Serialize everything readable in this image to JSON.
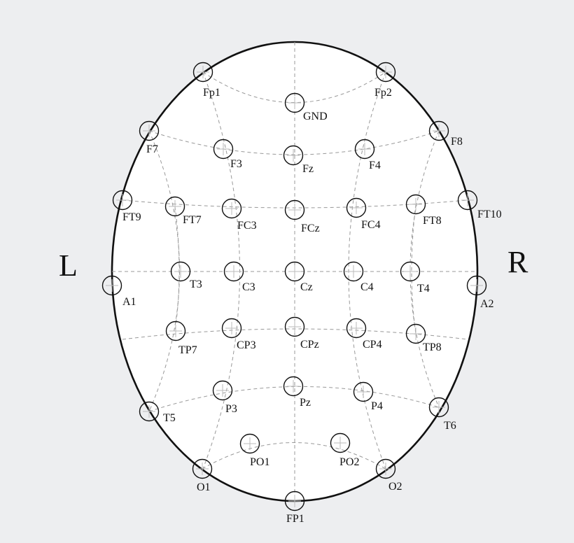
{
  "sides": {
    "left": "L",
    "right": "R"
  },
  "colors": {
    "background": "#edeef0",
    "head_fill": "#ffffff",
    "outline": "#111111",
    "grid": "#999999"
  },
  "electrodes": [
    {
      "id": "fp1",
      "label": "Fp1"
    },
    {
      "id": "fp2",
      "label": "Fp2"
    },
    {
      "id": "gnd",
      "label": "GND"
    },
    {
      "id": "f7",
      "label": "F7"
    },
    {
      "id": "f3",
      "label": "F3"
    },
    {
      "id": "fz",
      "label": "Fz"
    },
    {
      "id": "f4",
      "label": "F4"
    },
    {
      "id": "f8",
      "label": "F8"
    },
    {
      "id": "ft9",
      "label": "FT9"
    },
    {
      "id": "ft7",
      "label": "FT7"
    },
    {
      "id": "fc3",
      "label": "FC3"
    },
    {
      "id": "fcz",
      "label": "FCz"
    },
    {
      "id": "fc4",
      "label": "FC4"
    },
    {
      "id": "ft8",
      "label": "FT8"
    },
    {
      "id": "ft10",
      "label": "FT10"
    },
    {
      "id": "a1",
      "label": "A1"
    },
    {
      "id": "t3",
      "label": "T3"
    },
    {
      "id": "c3",
      "label": "C3"
    },
    {
      "id": "cz",
      "label": "Cz"
    },
    {
      "id": "c4",
      "label": "C4"
    },
    {
      "id": "t4",
      "label": "T4"
    },
    {
      "id": "a2",
      "label": "A2"
    },
    {
      "id": "tp7",
      "label": "TP7"
    },
    {
      "id": "cp3",
      "label": "CP3"
    },
    {
      "id": "cpz",
      "label": "CPz"
    },
    {
      "id": "cp4",
      "label": "CP4"
    },
    {
      "id": "tp8",
      "label": "TP8"
    },
    {
      "id": "t5",
      "label": "T5"
    },
    {
      "id": "p3",
      "label": "P3"
    },
    {
      "id": "pz",
      "label": "Pz"
    },
    {
      "id": "p4",
      "label": "P4"
    },
    {
      "id": "t6",
      "label": "T6"
    },
    {
      "id": "po1",
      "label": "PO1"
    },
    {
      "id": "po2",
      "label": "PO2"
    },
    {
      "id": "o1",
      "label": "O1"
    },
    {
      "id": "o2",
      "label": "O2"
    },
    {
      "id": "fpz_bottom",
      "label": "FP1"
    }
  ]
}
